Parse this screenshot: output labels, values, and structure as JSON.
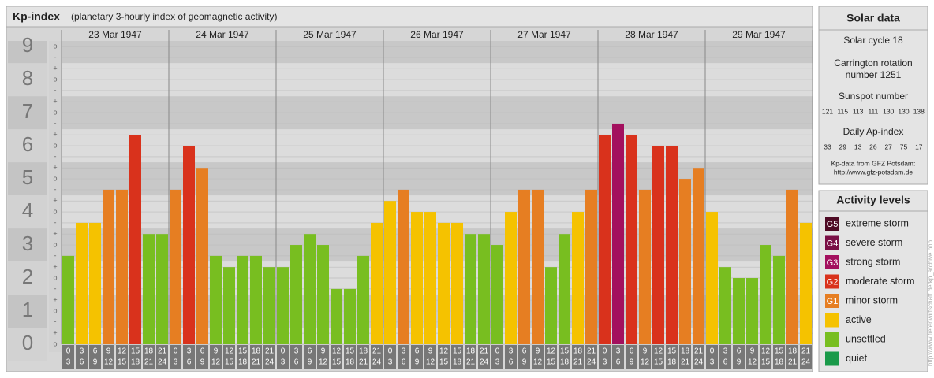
{
  "chart_data": {
    "type": "bar",
    "title": "Kp-index",
    "subtitle": "(planetary 3-hourly index of geomagnetic activity)",
    "categories": [
      "23 Mar 1947",
      "24 Mar 1947",
      "25 Mar 1947",
      "26 Mar 1947",
      "27 Mar 1947",
      "28 Mar 1947",
      "29 Mar 1947"
    ],
    "hours": [
      [
        "0",
        "3"
      ],
      [
        "3",
        "6"
      ],
      [
        "6",
        "9"
      ],
      [
        "9",
        "12"
      ],
      [
        "12",
        "15"
      ],
      [
        "15",
        "18"
      ],
      [
        "18",
        "21"
      ],
      [
        "21",
        "24"
      ]
    ],
    "values": [
      [
        2.67,
        3.67,
        3.67,
        4.67,
        4.67,
        6.33,
        3.33,
        3.33
      ],
      [
        4.67,
        6,
        5.33,
        2.67,
        2.33,
        2.67,
        2.67,
        2.33
      ],
      [
        2.33,
        3,
        3.33,
        3,
        1.67,
        1.67,
        2.67,
        3.67
      ],
      [
        4.33,
        4.67,
        4,
        4,
        3.67,
        3.67,
        3.33,
        3.33
      ],
      [
        3,
        4,
        4.67,
        4.67,
        2.33,
        3.33,
        4,
        4.67
      ],
      [
        6.33,
        6.67,
        6.33,
        4.67,
        6,
        6,
        5,
        5.33
      ],
      [
        4,
        2.33,
        2,
        2,
        3,
        2.67,
        4.67,
        3.67
      ]
    ],
    "colors": [
      [
        "#78be20",
        "#f5c200",
        "#f5c200",
        "#e67e22",
        "#e67e22",
        "#d9321c",
        "#78be20",
        "#78be20"
      ],
      [
        "#e67e22",
        "#d9321c",
        "#e67e22",
        "#78be20",
        "#78be20",
        "#78be20",
        "#78be20",
        "#78be20"
      ],
      [
        "#78be20",
        "#78be20",
        "#78be20",
        "#78be20",
        "#78be20",
        "#78be20",
        "#78be20",
        "#f5c200"
      ],
      [
        "#f5c200",
        "#e67e22",
        "#f5c200",
        "#f5c200",
        "#f5c200",
        "#f5c200",
        "#78be20",
        "#78be20"
      ],
      [
        "#78be20",
        "#f5c200",
        "#e67e22",
        "#e67e22",
        "#78be20",
        "#78be20",
        "#f5c200",
        "#e67e22"
      ],
      [
        "#d9321c",
        "#a3105e",
        "#d9321c",
        "#e67e22",
        "#d9321c",
        "#d9321c",
        "#e67e22",
        "#e67e22"
      ],
      [
        "#f5c200",
        "#78be20",
        "#78be20",
        "#78be20",
        "#78be20",
        "#78be20",
        "#e67e22",
        "#f5c200"
      ]
    ],
    "ylim": [
      0,
      9.17
    ],
    "yticks": [
      0,
      1,
      2,
      3,
      4,
      5,
      6,
      7,
      8,
      9
    ],
    "minor_yticks": [
      {
        "value": 0,
        "label": "o"
      },
      {
        "value": 0.33,
        "label": "+"
      },
      {
        "value": 0.67,
        "label": "-"
      },
      {
        "value": 1,
        "label": "o"
      },
      {
        "value": 1.33,
        "label": "+"
      },
      {
        "value": 1.67,
        "label": "-"
      },
      {
        "value": 2,
        "label": "o"
      },
      {
        "value": 2.33,
        "label": "+"
      },
      {
        "value": 2.67,
        "label": "-"
      },
      {
        "value": 3,
        "label": "o"
      },
      {
        "value": 3.33,
        "label": "+"
      },
      {
        "value": 3.67,
        "label": "-"
      },
      {
        "value": 4,
        "label": "o"
      },
      {
        "value": 4.33,
        "label": "+"
      },
      {
        "value": 4.67,
        "label": "-"
      },
      {
        "value": 5,
        "label": "o"
      },
      {
        "value": 5.33,
        "label": "+"
      },
      {
        "value": 5.67,
        "label": "-"
      },
      {
        "value": 6,
        "label": "o"
      },
      {
        "value": 6.33,
        "label": "+"
      },
      {
        "value": 6.67,
        "label": "-"
      },
      {
        "value": 7,
        "label": "o"
      },
      {
        "value": 7.33,
        "label": "+"
      },
      {
        "value": 7.67,
        "label": "-"
      },
      {
        "value": 8,
        "label": "o"
      },
      {
        "value": 8.33,
        "label": "+"
      },
      {
        "value": 8.67,
        "label": "-"
      },
      {
        "value": 9,
        "label": "o"
      }
    ],
    "grid": true
  },
  "solar_data": {
    "title": "Solar data",
    "cycle": "Solar cycle 18",
    "carrington": [
      "Carrington rotation",
      "number 1251"
    ],
    "sunspot_title": "Sunspot number",
    "sunspot": [
      121,
      115,
      113,
      111,
      130,
      130,
      138
    ],
    "ap_title": "Daily Ap-index",
    "ap": [
      33,
      29,
      13,
      26,
      27,
      75,
      17
    ],
    "source": "Kp-data from GFZ Potsdam:",
    "url": "http://www.gfz-potsdam.de"
  },
  "activity_levels": {
    "title": "Activity levels",
    "items": [
      {
        "badge": "G5",
        "label": "extreme storm",
        "color": "#4e0a24"
      },
      {
        "badge": "G4",
        "label": "severe storm",
        "color": "#7a0f45"
      },
      {
        "badge": "G3",
        "label": "strong storm",
        "color": "#a3105e"
      },
      {
        "badge": "G2",
        "label": "moderate storm",
        "color": "#d9321c"
      },
      {
        "badge": "G1",
        "label": "minor storm",
        "color": "#e67e22"
      },
      {
        "badge": "",
        "label": "active",
        "color": "#f5c200"
      },
      {
        "badge": "",
        "label": "unsettled",
        "color": "#78be20"
      },
      {
        "badge": "",
        "label": "quiet",
        "color": "#1a9a4a"
      }
    ]
  },
  "watermark": "http://www.tiefenwirtschaft.de/kp_archive.php"
}
